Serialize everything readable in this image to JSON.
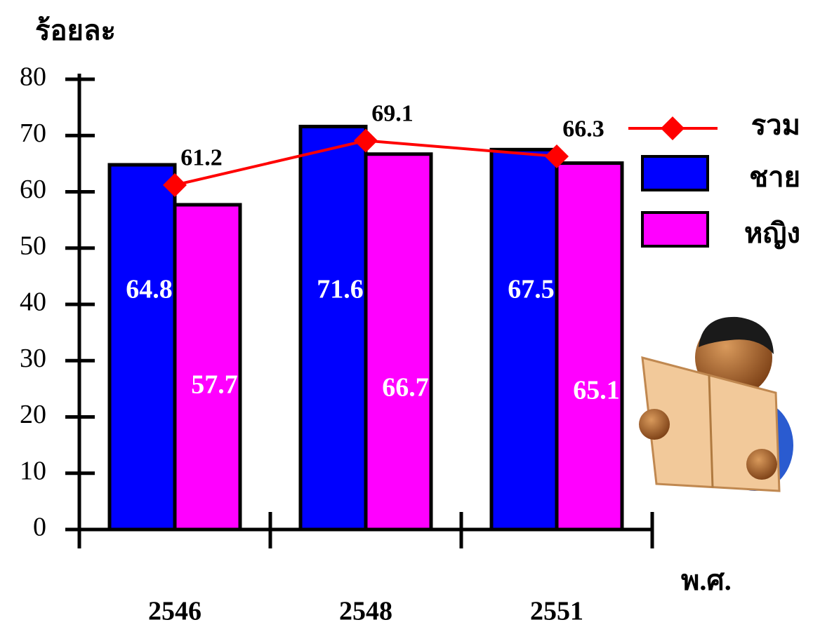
{
  "chart_data": {
    "type": "bar",
    "y_label": "ร้อยละ",
    "x_label": "พ.ศ.",
    "categories": [
      "2546",
      "2548",
      "2551"
    ],
    "series": [
      {
        "name": "ชาย",
        "type": "bar",
        "color": "#0000ff",
        "values": [
          64.8,
          71.6,
          67.5
        ]
      },
      {
        "name": "หญิง",
        "type": "bar",
        "color": "#ff00ff",
        "values": [
          57.7,
          66.7,
          65.1
        ]
      },
      {
        "name": "รวม",
        "type": "line",
        "color": "#ff0000",
        "values": [
          61.2,
          69.1,
          66.3
        ]
      }
    ],
    "ylim": [
      0,
      80
    ],
    "yticks": [
      0,
      10,
      20,
      30,
      40,
      50,
      60,
      70,
      80
    ]
  }
}
